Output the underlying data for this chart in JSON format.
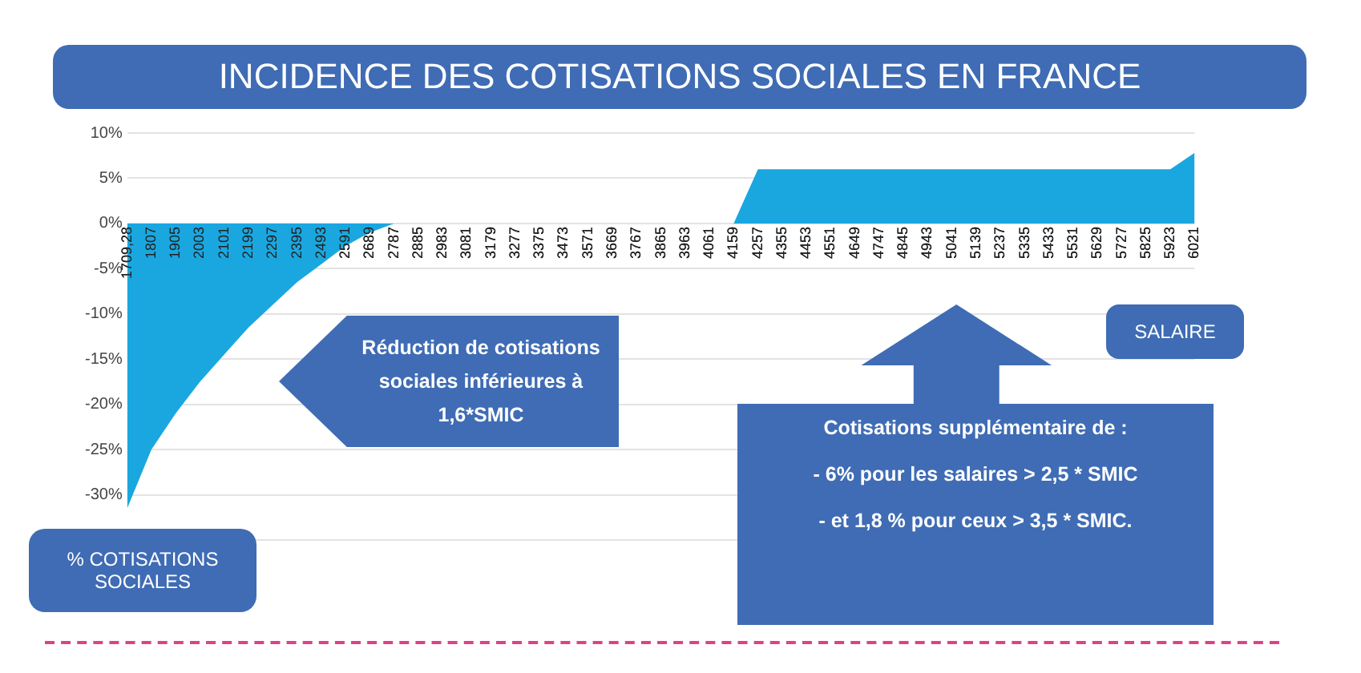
{
  "chart_data": {
    "type": "area",
    "title": "INCIDENCE DES COTISATIONS SOCIALES EN FRANCE",
    "xlabel": "SALAIRE",
    "ylabel": "% COTISATIONS SOCIALES",
    "categories": [
      "1709,28",
      "1807",
      "1905",
      "2003",
      "2101",
      "2199",
      "2297",
      "2395",
      "2493",
      "2591",
      "2689",
      "2787",
      "2885",
      "2983",
      "3081",
      "3179",
      "3277",
      "3375",
      "3473",
      "3571",
      "3669",
      "3767",
      "3865",
      "3963",
      "4061",
      "4159",
      "4257",
      "4355",
      "4453",
      "4551",
      "4649",
      "4747",
      "4845",
      "4943",
      "5041",
      "5139",
      "5237",
      "5335",
      "5433",
      "5531",
      "5629",
      "5727",
      "5825",
      "5923",
      "6021"
    ],
    "values": [
      -31.5,
      -25,
      -21,
      -17.5,
      -14.5,
      -11.5,
      -9,
      -6.5,
      -4.5,
      -2.5,
      -1,
      0,
      0,
      0,
      0,
      0,
      0,
      0,
      0,
      0,
      0,
      0,
      0,
      0,
      0,
      0,
      6,
      6,
      6,
      6,
      6,
      6,
      6,
      6,
      6,
      6,
      6,
      6,
      6,
      6,
      6,
      6,
      6,
      6,
      7.8
    ],
    "color": "#1aa7e0",
    "ylim": [
      -35,
      10
    ],
    "yticks": [
      {
        "value": -35,
        "label": null
      },
      {
        "value": -30,
        "label": "-30%"
      },
      {
        "value": -25,
        "label": "-25%"
      },
      {
        "value": -20,
        "label": "-20%"
      },
      {
        "value": -15,
        "label": "-15%"
      },
      {
        "value": -10,
        "label": "-10%"
      },
      {
        "value": -5,
        "label": "-5%"
      },
      {
        "value": 0,
        "label": "0%"
      },
      {
        "value": 5,
        "label": "5%"
      },
      {
        "value": 10,
        "label": "10%"
      }
    ],
    "grid": "y",
    "legend": false,
    "marker": "none",
    "annotations": [
      "Réduction de cotisations sociales inférieures à 1,6*SMIC",
      "Cotisations supplémentaire de :",
      "- 6% pour les salaires > 2,5 * SMIC",
      "- et 1,8 % pour ceux > 3,5 * SMIC."
    ]
  }
}
